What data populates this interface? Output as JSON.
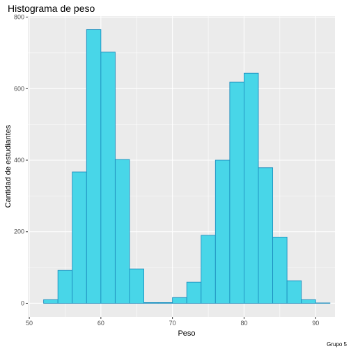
{
  "chart_data": {
    "type": "bar",
    "title": "Histograma de peso",
    "xlabel": "Peso",
    "ylabel": "Cantidad de estudiantes",
    "caption": "Grupo 5",
    "xlim": [
      49.8,
      92.7
    ],
    "ylim": [
      -38,
      803
    ],
    "x_ticks": [
      50,
      60,
      70,
      80,
      90
    ],
    "y_ticks": [
      0,
      200,
      400,
      600,
      800
    ],
    "grid": true,
    "bin_width": 2,
    "bins": [
      {
        "start": 52,
        "end": 54,
        "count": 10
      },
      {
        "start": 54,
        "end": 56,
        "count": 92
      },
      {
        "start": 56,
        "end": 58,
        "count": 367
      },
      {
        "start": 58,
        "end": 60,
        "count": 765
      },
      {
        "start": 60,
        "end": 62,
        "count": 702
      },
      {
        "start": 62,
        "end": 64,
        "count": 402
      },
      {
        "start": 64,
        "end": 66,
        "count": 96
      },
      {
        "start": 66,
        "end": 68,
        "count": 2
      },
      {
        "start": 68,
        "end": 70,
        "count": 2
      },
      {
        "start": 70,
        "end": 72,
        "count": 16
      },
      {
        "start": 72,
        "end": 74,
        "count": 59
      },
      {
        "start": 74,
        "end": 76,
        "count": 190
      },
      {
        "start": 76,
        "end": 78,
        "count": 400
      },
      {
        "start": 78,
        "end": 80,
        "count": 618
      },
      {
        "start": 80,
        "end": 82,
        "count": 643
      },
      {
        "start": 82,
        "end": 84,
        "count": 379
      },
      {
        "start": 84,
        "end": 86,
        "count": 185
      },
      {
        "start": 86,
        "end": 88,
        "count": 63
      },
      {
        "start": 88,
        "end": 90,
        "count": 10
      },
      {
        "start": 90,
        "end": 92,
        "count": 1
      }
    ],
    "colors": {
      "fill": "#48d6e8",
      "stroke": "#1e8fbf",
      "panel": "#ebebeb",
      "grid": "#ffffff"
    }
  }
}
